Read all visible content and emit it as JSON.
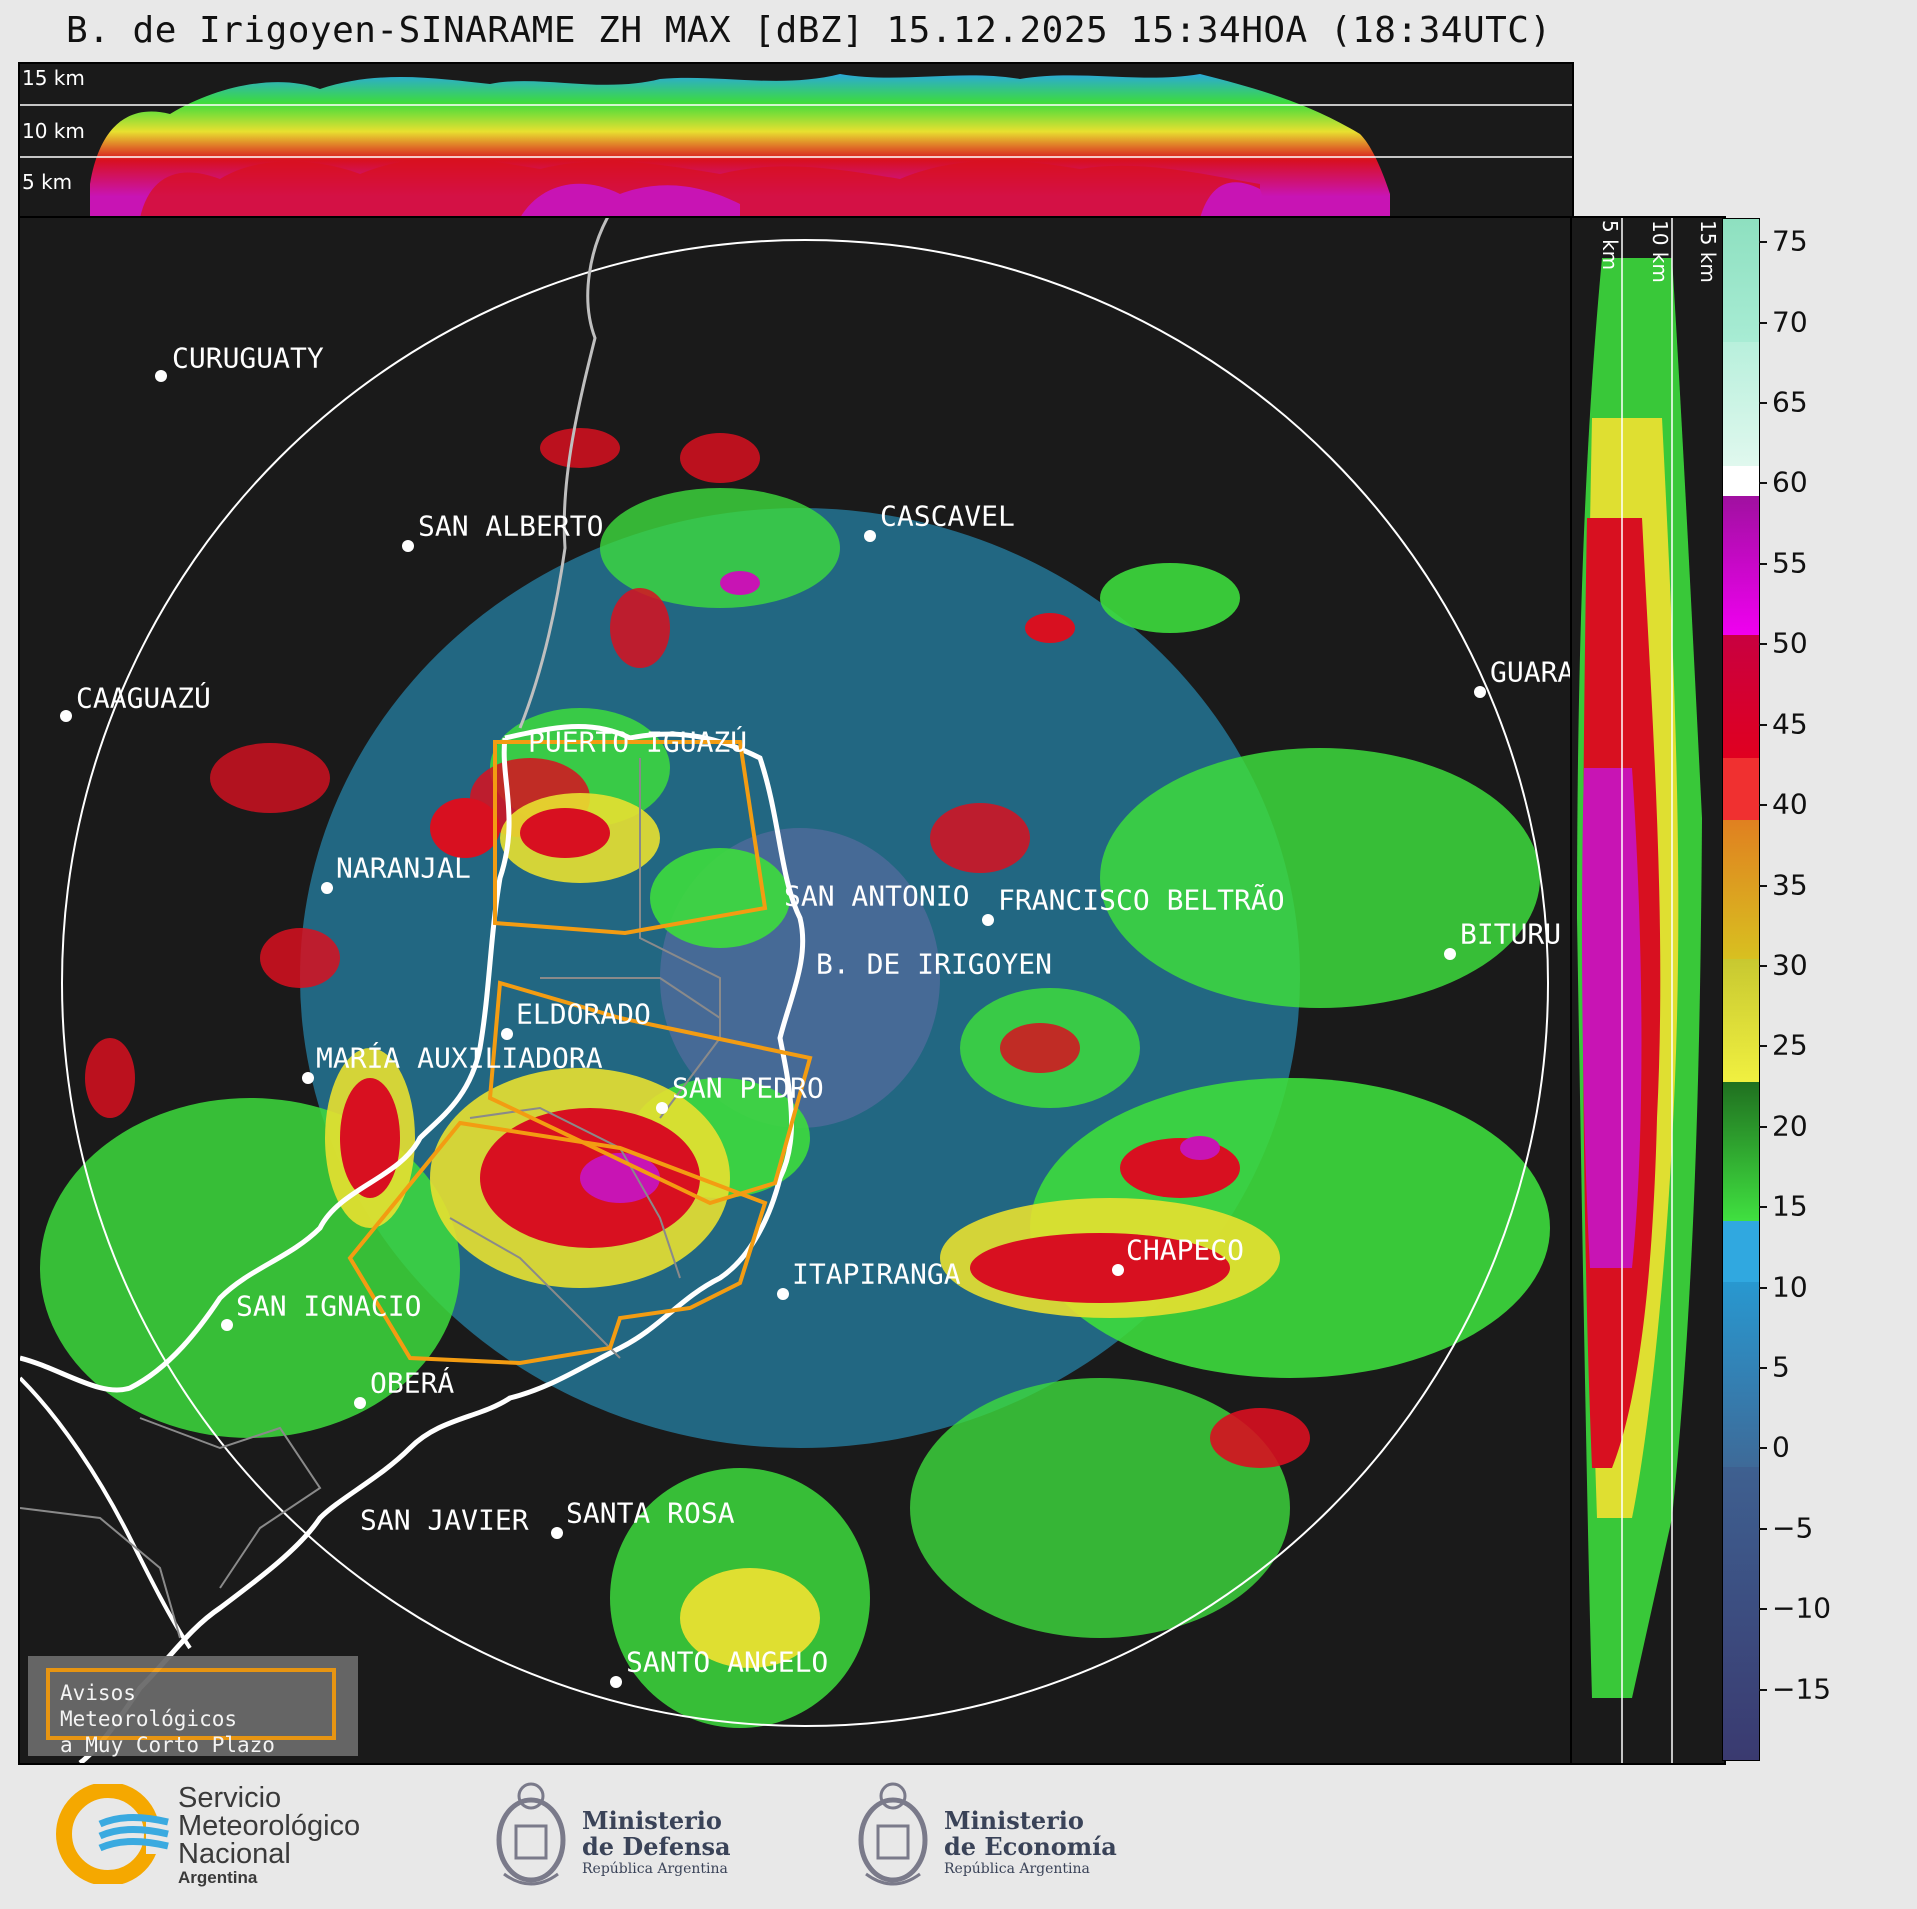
{
  "title": "B. de Irigoyen-SINARAME ZH MAX [dBZ] 15.12.2025 15:34HOA (18:34UTC)",
  "top_panel": {
    "height_labels": [
      "15 km",
      "10 km",
      "5 km"
    ]
  },
  "side_panel": {
    "height_labels": [
      "5 km",
      "10 km",
      "15 km"
    ]
  },
  "colorbar": {
    "unit": "dBZ",
    "tick_labels": [
      "75",
      "70",
      "65",
      "60",
      "55",
      "50",
      "45",
      "40",
      "35",
      "30",
      "25",
      "20",
      "15",
      "10",
      "5",
      "0",
      "−5",
      "−10",
      "−15"
    ],
    "range": [
      -19,
      77
    ]
  },
  "cities": [
    {
      "name": "CURUGUATY"
    },
    {
      "name": "SAN ALBERTO"
    },
    {
      "name": "CASCAVEL"
    },
    {
      "name": "CAAGUAZÚ"
    },
    {
      "name": "GUARA"
    },
    {
      "name": "PUERTO IGUAZÚ"
    },
    {
      "name": "NARANJAL"
    },
    {
      "name": "SAN ANTONIO"
    },
    {
      "name": "FRANCISCO BELTRÃO"
    },
    {
      "name": "BITURU"
    },
    {
      "name": "B. DE IRIGOYEN"
    },
    {
      "name": "ELDORADO"
    },
    {
      "name": "MARÍA AUXILIADORA"
    },
    {
      "name": "SAN PEDRO"
    },
    {
      "name": "CHAPECO"
    },
    {
      "name": "ITAPIRANGA"
    },
    {
      "name": "SAN IGNACIO"
    },
    {
      "name": "OBERÁ"
    },
    {
      "name": "SAN JAVIER"
    },
    {
      "name": "SANTA ROSA"
    },
    {
      "name": "SANTO ANGELO"
    }
  ],
  "legend": {
    "line1": "Avisos Meteorológicos",
    "line2": "a Muy Corto Plazo",
    "color": "#f39c12"
  },
  "logos": {
    "smn": {
      "line1": "Servicio",
      "line2": "Meteorológico",
      "line3": "Nacional",
      "line4": "Argentina"
    },
    "defensa": {
      "line1": "Ministerio",
      "line2": "de Defensa",
      "line3": "República Argentina"
    },
    "economia": {
      "line1": "Ministerio",
      "line2": "de Economía",
      "line3": "República Argentina"
    }
  }
}
